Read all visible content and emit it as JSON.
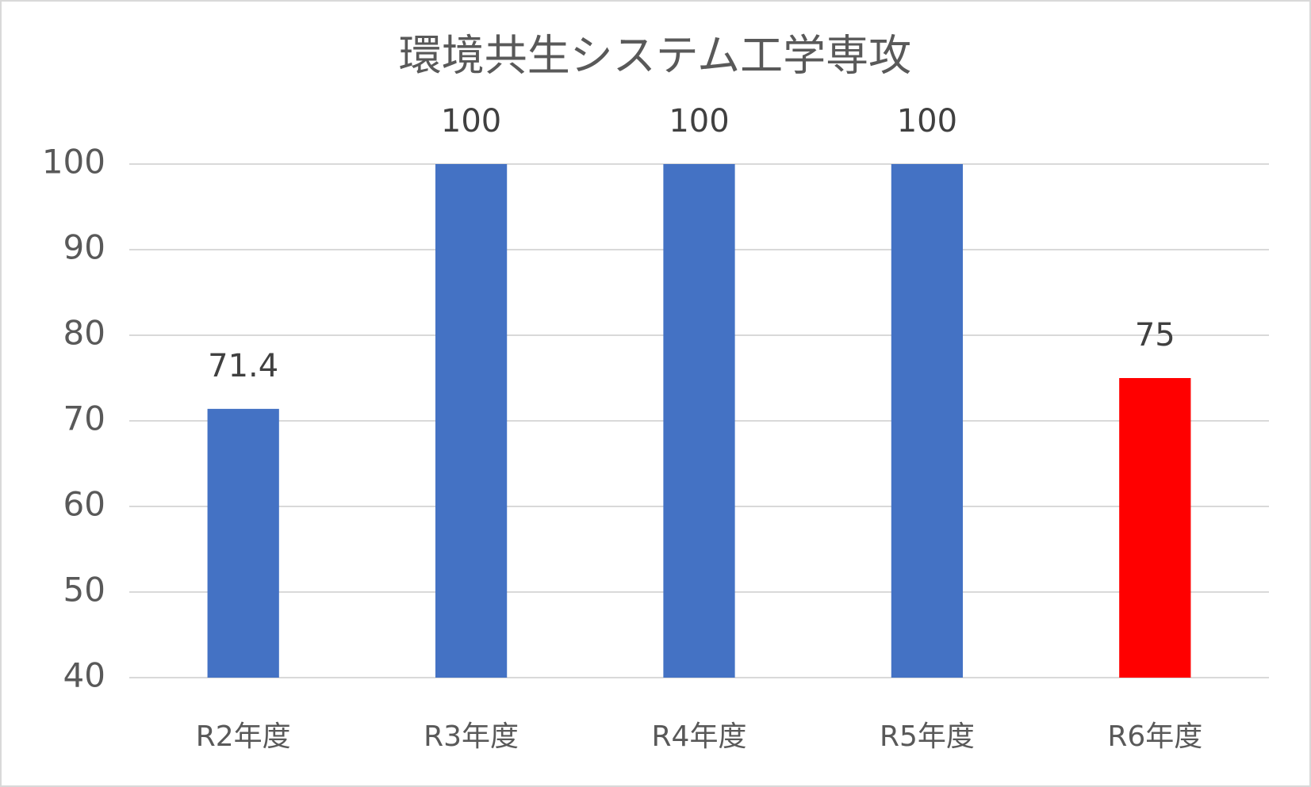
{
  "chart_data": {
    "type": "bar",
    "title": "環境共生システム工学専攻",
    "categories": [
      "R2年度",
      "R3年度",
      "R4年度",
      "R5年度",
      "R6年度"
    ],
    "values": [
      71.4,
      100,
      100,
      100,
      75
    ],
    "colors": [
      "#4472c4",
      "#4472c4",
      "#4472c4",
      "#4472c4",
      "#ff0000"
    ],
    "ylim": [
      40,
      100
    ],
    "yticks": [
      40,
      50,
      60,
      70,
      80,
      90,
      100
    ],
    "grid": true
  }
}
